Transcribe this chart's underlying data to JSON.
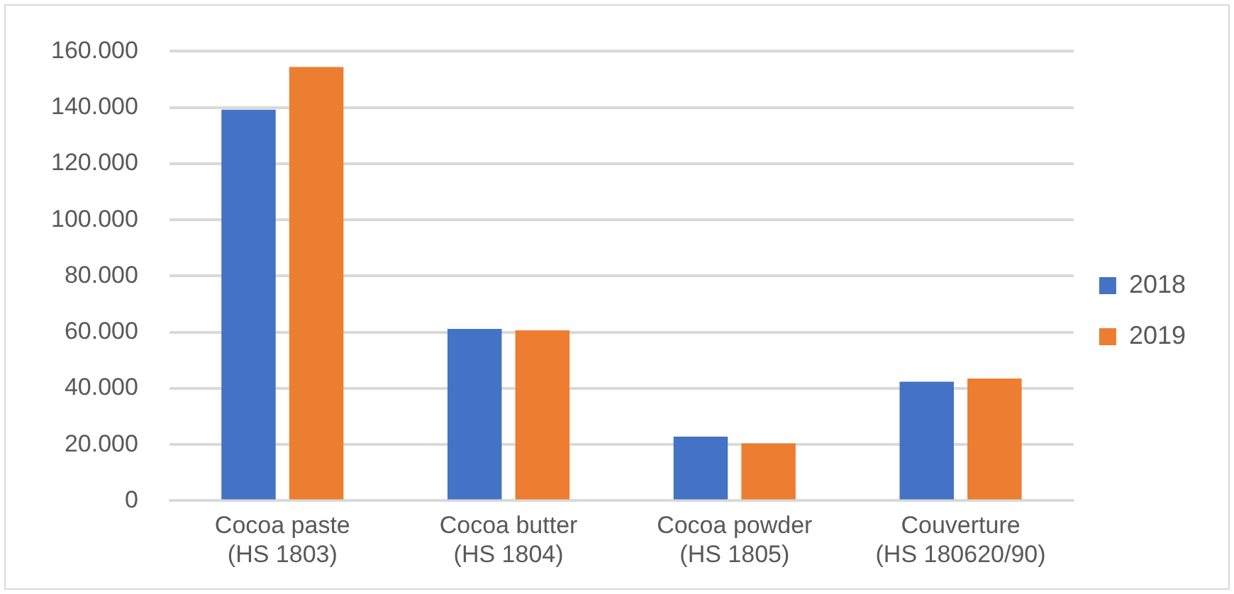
{
  "chart_data": {
    "type": "bar",
    "categories": [
      "Cocoa paste\n(HS 1803)",
      "Cocoa butter\n(HS 1804)",
      "Cocoa powder\n(HS 1805)",
      "Couverture\n(HS 180620/90)"
    ],
    "series": [
      {
        "name": "2018",
        "color": "#4472c4",
        "values": [
          139200,
          61200,
          22800,
          42400
        ]
      },
      {
        "name": "2019",
        "color": "#ed7d31",
        "values": [
          154400,
          60700,
          20400,
          43500
        ]
      }
    ],
    "ylim": [
      0,
      160000
    ],
    "yticks": [
      {
        "value": 0,
        "label": "0"
      },
      {
        "value": 20000,
        "label": "20.000"
      },
      {
        "value": 40000,
        "label": "40.000"
      },
      {
        "value": 60000,
        "label": "60.000"
      },
      {
        "value": 80000,
        "label": "80.000"
      },
      {
        "value": 100000,
        "label": "100.000"
      },
      {
        "value": 120000,
        "label": "120.000"
      },
      {
        "value": 140000,
        "label": "140.000"
      },
      {
        "value": 160000,
        "label": "160.000"
      }
    ],
    "grid": "y",
    "legend": "right"
  }
}
